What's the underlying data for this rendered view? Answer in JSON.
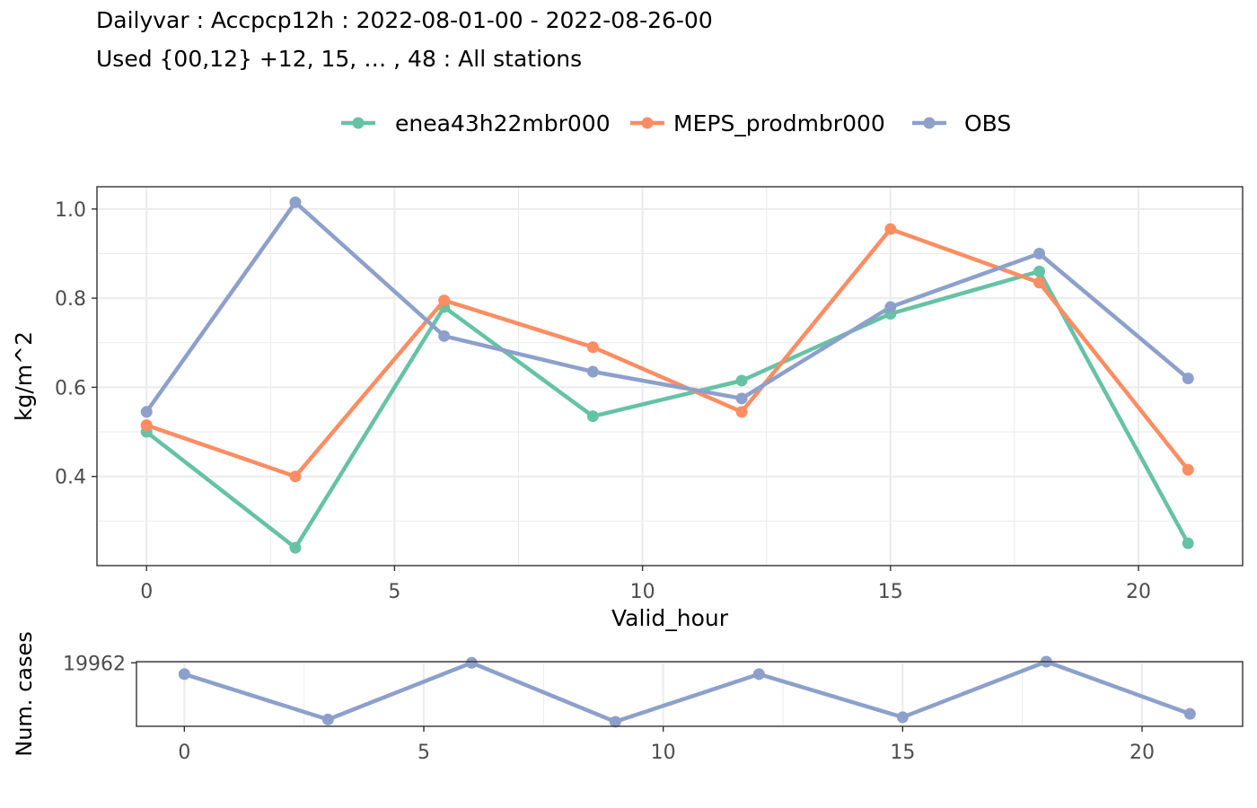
{
  "header": {
    "title": "Dailyvar : Accpcp12h : 2022-08-01-00 - 2022-08-26-00",
    "subtitle": "Used {00,12} +12, 15, … , 48 : All stations"
  },
  "chart_data": [
    {
      "type": "line",
      "xlabel": "Valid_hour",
      "ylabel": "kg/m^2",
      "x": [
        0,
        3,
        6,
        9,
        12,
        15,
        18,
        21
      ],
      "xlim": [
        -1,
        22.1
      ],
      "ylim": [
        0.2,
        1.05
      ],
      "xticks": [
        0,
        5,
        10,
        15,
        20
      ],
      "xtick_labels": [
        "0",
        "5",
        "10",
        "15",
        "20"
      ],
      "yticks": [
        0.4,
        0.6,
        0.8,
        1.0
      ],
      "ytick_labels": [
        "0.4",
        "0.6",
        "0.8",
        "1.0"
      ],
      "grid": true,
      "legend_position": "top",
      "series": [
        {
          "name": "enea43h22mbr000",
          "color": "#66C2A5",
          "values": [
            0.5,
            0.24,
            0.78,
            0.535,
            0.615,
            0.765,
            0.86,
            0.25
          ]
        },
        {
          "name": "MEPS_prodmbr000",
          "color": "#FC8D62",
          "values": [
            0.515,
            0.4,
            0.795,
            0.69,
            0.545,
            0.955,
            0.835,
            0.415
          ]
        },
        {
          "name": "OBS",
          "color": "#8DA0CB",
          "values": [
            0.545,
            1.015,
            0.715,
            0.635,
            0.575,
            0.78,
            0.9,
            0.62
          ]
        }
      ]
    },
    {
      "type": "line",
      "ylabel": "Num. cases",
      "x": [
        0,
        3,
        6,
        9,
        12,
        15,
        18,
        21
      ],
      "xlim": [
        -1,
        22.1
      ],
      "ylim": [
        19956.4,
        19962.1
      ],
      "xticks": [
        0,
        5,
        10,
        15,
        20
      ],
      "xtick_labels": [
        "0",
        "5",
        "10",
        "15",
        "20"
      ],
      "yticks": [
        19962
      ],
      "ytick_labels": [
        "19962"
      ],
      "grid": true,
      "series": [
        {
          "color": "#8DA0CB",
          "values": [
            19961,
            19957,
            19962,
            19956.8,
            19961,
            19957.2,
            19962.1,
            19957.5
          ]
        }
      ]
    }
  ]
}
